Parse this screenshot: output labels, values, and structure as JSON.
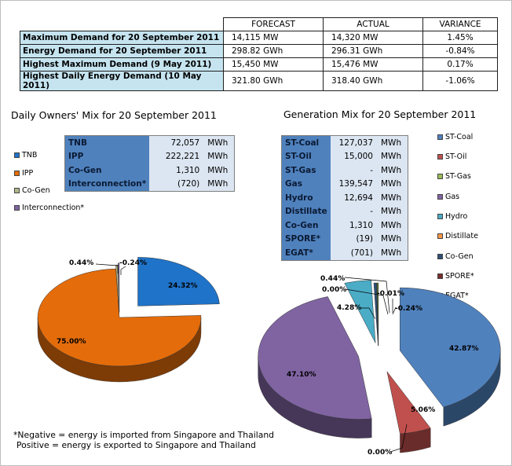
{
  "summary": {
    "headers": [
      "FORECAST",
      "ACTUAL",
      "VARIANCE"
    ],
    "rows": [
      {
        "label": "Maximum Demand for 20 September 2011",
        "forecast": "14,115  MW",
        "actual": "14,320  MW",
        "variance": "1.45%"
      },
      {
        "label": "Energy Demand for 20 September 2011",
        "forecast": "298.82  GWh",
        "actual": "296.31  GWh",
        "variance": "-0.84%"
      },
      {
        "label": "Highest Maximum Demand (9 May 2011)",
        "forecast": "15,450  MW",
        "actual": "15,476  MW",
        "variance": "0.17%"
      },
      {
        "label": "Highest Daily Energy Demand (10 May 2011)",
        "forecast": "321.80  GWh",
        "actual": "318.40  GWh",
        "variance": "-1.06%"
      }
    ]
  },
  "owners": {
    "title": "Daily Owners' Mix for 20 September 2011",
    "table": [
      {
        "name": "TNB",
        "value": "72,057",
        "unit": "MWh"
      },
      {
        "name": "IPP",
        "value": "222,221",
        "unit": "MWh"
      },
      {
        "name": "Co-Gen",
        "value": "1,310",
        "unit": "MWh"
      },
      {
        "name": "Interconnection*",
        "value": "(720)",
        "unit": "MWh"
      }
    ],
    "legend": [
      {
        "label": "TNB",
        "color": "#1f73c8"
      },
      {
        "label": "IPP",
        "color": "#e46c0a"
      },
      {
        "label": "Co-Gen",
        "color": "#b2b68a"
      },
      {
        "label": "Interconnection*",
        "color": "#8064a2"
      }
    ]
  },
  "generation": {
    "title": "Generation Mix for 20 September 2011",
    "table": [
      {
        "name": "ST-Coal",
        "value": "127,037",
        "unit": "MWh"
      },
      {
        "name": "ST-Oil",
        "value": "15,000",
        "unit": "MWh"
      },
      {
        "name": "ST-Gas",
        "value": "-",
        "unit": "MWh"
      },
      {
        "name": "Gas",
        "value": "139,547",
        "unit": "MWh"
      },
      {
        "name": "Hydro",
        "value": "12,694",
        "unit": "MWh"
      },
      {
        "name": "Distillate",
        "value": "-",
        "unit": "MWh"
      },
      {
        "name": "Co-Gen",
        "value": "1,310",
        "unit": "MWh"
      },
      {
        "name": "SPORE*",
        "value": "(19)",
        "unit": "MWh"
      },
      {
        "name": "EGAT*",
        "value": "(701)",
        "unit": "MWh"
      }
    ],
    "legend": [
      {
        "label": "ST-Coal",
        "color": "#4f81bd"
      },
      {
        "label": "ST-Oil",
        "color": "#c0504d"
      },
      {
        "label": "ST-Gas",
        "color": "#9bbb59"
      },
      {
        "label": "Gas",
        "color": "#8064a2"
      },
      {
        "label": "Hydro",
        "color": "#4bacc6"
      },
      {
        "label": "Distillate",
        "color": "#f79646"
      },
      {
        "label": "Co-Gen",
        "color": "#2c4d75"
      },
      {
        "label": "SPORE*",
        "color": "#772c2a"
      },
      {
        "label": "EGAT*",
        "color": "#5f7530"
      }
    ]
  },
  "chart_data": [
    {
      "type": "pie",
      "title": "Daily Owners' Mix for 20 September 2011",
      "categories": [
        "TNB",
        "IPP",
        "Co-Gen",
        "Interconnection*"
      ],
      "values": [
        24.32,
        75.0,
        0.44,
        -0.24
      ],
      "labels": [
        "24.32%",
        "75.00%",
        "0.44%",
        "-0.24%"
      ],
      "colors": [
        "#1f73c8",
        "#e46c0a",
        "#b2b68a",
        "#8064a2"
      ]
    },
    {
      "type": "pie",
      "title": "Generation Mix for 20 September 2011",
      "categories": [
        "ST-Coal",
        "ST-Oil",
        "ST-Gas",
        "Gas",
        "Hydro",
        "Distillate",
        "Co-Gen",
        "SPORE*",
        "EGAT*"
      ],
      "values": [
        42.87,
        5.06,
        0.0,
        47.1,
        4.28,
        0.0,
        0.44,
        -0.01,
        -0.24
      ],
      "labels": [
        "42.87%",
        "5.06%",
        "0.00%",
        "47.10%",
        "4.28%",
        "0.00%",
        "0.44%",
        "-0.01%",
        "-0.24%"
      ],
      "colors": [
        "#4f81bd",
        "#c0504d",
        "#9bbb59",
        "#8064a2",
        "#4bacc6",
        "#f79646",
        "#2c4d75",
        "#772c2a",
        "#5f7530"
      ]
    }
  ],
  "footnote": {
    "line1": "*Negative = energy is imported from Singapore and Thailand",
    "line2": "Positive = energy is exported to Singapore and Thailand"
  }
}
